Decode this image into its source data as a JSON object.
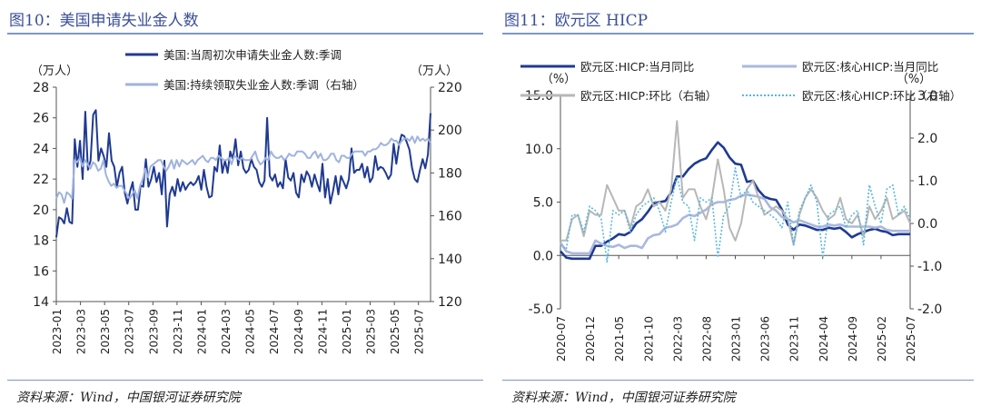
{
  "left": {
    "title": "图10：美国申请失业金人数",
    "source": "资料来源：Wind，中国银河证券研究院",
    "chart_data": {
      "type": "line",
      "left_unit": "（万人）",
      "right_unit": "（万人）",
      "y_left_lim": [
        14,
        28
      ],
      "y_left_ticks": [
        14,
        16,
        18,
        20,
        22,
        24,
        26,
        28
      ],
      "y_right_lim": [
        120,
        220
      ],
      "y_right_ticks": [
        120,
        140,
        160,
        180,
        200,
        220
      ],
      "x_start": "2023-01",
      "x_end": "2025-08",
      "x_ticks": [
        "2023-01",
        "2023-03",
        "2023-05",
        "2023-07",
        "2023-09",
        "2023-11",
        "2024-01",
        "2024-03",
        "2024-05",
        "2024-07",
        "2024-09",
        "2024-11",
        "2025-01",
        "2025-03",
        "2025-05",
        "2025-07"
      ],
      "legend_position": "top",
      "grid": false,
      "series": [
        {
          "name": "美国:当周初次申请失业金人数:季调",
          "axis": "left",
          "color": "#1f3a93",
          "values": [
            18.2,
            19.5,
            19.4,
            19.1,
            20.1,
            19.2,
            19.1,
            24.6,
            22.8,
            24.5,
            22.0,
            26.4,
            22.6,
            23.2,
            26.2,
            26.5,
            23.2,
            24.0,
            23.5,
            22.8,
            25.0,
            23.2,
            22.8,
            21.5,
            22.4,
            22.8,
            21.1,
            20.4,
            21.2,
            21.8,
            20.0,
            20.0,
            21.6,
            21.5,
            23.3,
            21.5,
            22.0,
            22.8,
            21.8,
            22.4,
            21.0,
            23.2,
            18.9,
            21.0,
            21.5,
            20.9,
            22.0,
            21.2,
            21.8,
            21.3,
            21.6,
            21.8,
            21.6,
            21.8,
            22.2,
            21.3,
            22.6,
            21.5,
            20.8,
            20.9,
            22.8,
            22.5,
            24.2,
            22.4,
            23.2,
            22.4,
            23.8,
            23.3,
            24.6,
            22.9,
            23.8,
            22.7,
            22.4,
            22.6,
            23.3,
            22.8,
            22.6,
            21.8,
            21.5,
            21.9,
            26.0,
            22.2,
            21.9,
            22.3,
            21.5,
            21.8,
            21.4,
            23.3,
            22.1,
            21.9,
            22.4,
            21.1,
            20.8,
            22.3,
            21.8,
            22.5,
            22.2,
            21.5,
            22.3,
            21.7,
            21.2,
            23.0,
            20.8,
            22.0,
            20.4,
            21.2,
            22.2,
            21.0,
            22.2,
            21.8,
            21.4,
            22.0,
            24.0,
            22.4,
            22.6,
            22.6,
            23.0,
            22.1,
            22.8,
            21.8,
            22.1,
            23.5,
            22.6,
            22.8,
            22.7,
            22.4,
            22.0,
            22.3,
            24.3,
            23.0,
            24.2,
            24.9,
            24.8,
            24.4,
            23.9,
            22.7,
            22.0,
            21.8,
            22.6,
            23.3,
            22.7,
            23.6,
            26.3
          ]
        },
        {
          "name": "美国:持续领取失业金人数:季调（右轴）",
          "axis": "right",
          "color": "#9fb3df",
          "values": [
            168,
            171,
            170,
            166,
            171,
            170,
            168,
            186,
            185,
            187,
            183,
            186,
            184,
            182,
            185,
            184,
            181,
            182,
            186,
            179,
            176,
            174,
            175,
            173,
            174,
            174,
            172,
            170,
            168,
            170,
            172,
            168,
            174,
            177,
            182,
            178,
            183,
            184,
            185,
            186,
            186,
            183,
            181,
            183,
            186,
            182,
            186,
            183,
            186,
            185,
            184,
            185,
            186,
            184,
            186,
            187,
            188,
            186,
            185,
            187,
            187,
            186,
            188,
            187,
            186,
            186,
            187,
            184,
            188,
            187,
            186,
            187,
            186,
            186,
            186,
            188,
            190,
            186,
            184,
            185,
            187,
            186,
            190,
            188,
            187,
            187,
            188,
            186,
            187,
            189,
            188,
            188,
            190,
            190,
            190,
            189,
            187,
            187,
            189,
            190,
            187,
            189,
            186,
            186,
            187,
            189,
            189,
            186,
            185,
            188,
            188,
            187,
            187,
            189,
            190,
            190,
            190,
            190,
            188,
            190,
            190,
            191,
            191,
            192,
            194,
            193,
            193,
            194,
            196,
            195,
            195,
            193,
            195,
            196,
            196,
            195,
            197,
            194,
            197,
            195,
            196,
            195,
            196,
            194
          ]
        }
      ]
    }
  },
  "right": {
    "title": "图11：欧元区 HICP",
    "source": "资料来源：Wind，中国银河证券研究院",
    "chart_data": {
      "type": "line",
      "left_unit": "（%）",
      "right_unit": "（%）",
      "y_left_lim": [
        -5.0,
        15.0
      ],
      "y_left_ticks": [
        "-5.0",
        "0.0",
        "5.0",
        "10.0",
        "15.0"
      ],
      "y_right_lim": [
        -2.0,
        3.0
      ],
      "y_right_ticks": [
        "-2.0",
        "-1.0",
        "0.0",
        "1.0",
        "2.0",
        "3.0"
      ],
      "x_start": "2020-07",
      "x_end": "2025-07",
      "x_ticks": [
        "2020-07",
        "2020-12",
        "2021-05",
        "2021-10",
        "2022-03",
        "2022-08",
        "2023-01",
        "2023-06",
        "2023-11",
        "2024-04",
        "2024-09",
        "2025-02",
        "2025-07"
      ],
      "legend_position": "top",
      "grid": false,
      "series": [
        {
          "name": "欧元区:HICP:当月同比",
          "axis": "left",
          "color": "#1f3a93",
          "style": "solid-thick",
          "values": [
            0.4,
            -0.2,
            -0.3,
            -0.3,
            -0.3,
            -0.3,
            0.9,
            0.9,
            1.3,
            1.6,
            2.0,
            1.9,
            2.2,
            3.0,
            3.4,
            4.1,
            4.9,
            5.0,
            5.1,
            5.9,
            7.4,
            7.4,
            8.1,
            8.6,
            8.9,
            9.1,
            9.9,
            10.6,
            10.1,
            9.2,
            8.6,
            8.5,
            6.9,
            7.0,
            6.1,
            5.5,
            5.3,
            5.2,
            4.3,
            2.9,
            2.4,
            2.9,
            2.8,
            2.6,
            2.4,
            2.4,
            2.6,
            2.5,
            2.6,
            2.2,
            1.7,
            2.0,
            2.2,
            2.4,
            2.5,
            2.3,
            2.2,
            1.9,
            2.0,
            2.0,
            2.0
          ]
        },
        {
          "name": "欧元区:核心HICP:当月同比",
          "axis": "left",
          "color": "#a9b8de",
          "style": "solid-thick",
          "values": [
            1.2,
            0.4,
            0.2,
            0.2,
            0.2,
            0.2,
            1.4,
            1.1,
            0.9,
            0.8,
            1.0,
            0.7,
            0.9,
            0.9,
            0.7,
            1.6,
            1.9,
            2.0,
            2.6,
            2.7,
            2.9,
            3.5,
            3.8,
            3.7,
            4.0,
            4.3,
            4.8,
            5.0,
            5.0,
            5.2,
            5.3,
            5.6,
            5.7,
            5.6,
            5.5,
            5.3,
            4.5,
            4.2,
            3.6,
            3.4,
            3.1,
            3.3,
            3.1,
            2.9,
            2.7,
            2.7,
            2.9,
            2.8,
            2.9,
            2.7,
            2.7,
            2.7,
            2.7,
            2.7,
            2.6,
            2.7,
            2.4,
            2.3,
            2.3,
            2.3,
            2.3
          ]
        },
        {
          "name": "欧元区:HICP:环比（右轴）",
          "axis": "right",
          "color": "#b7b7b7",
          "style": "solid",
          "values": [
            -0.4,
            -0.4,
            0.1,
            0.2,
            -0.3,
            0.3,
            0.2,
            0.2,
            0.9,
            0.6,
            0.3,
            0.3,
            -0.1,
            0.4,
            0.5,
            0.8,
            0.4,
            0.5,
            0.3,
            0.8,
            2.4,
            0.6,
            0.8,
            0.8,
            0.4,
            0.1,
            0.6,
            1.5,
            0.8,
            -0.1,
            -0.4,
            0.0,
            0.8,
            1.0,
            0.6,
            0.2,
            0.3,
            0.4,
            0.3,
            0.1,
            -0.5,
            0.2,
            0.6,
            0.8,
            0.6,
            0.3,
            0.1,
            0.2,
            0.6,
            0.1,
            0.0,
            0.2,
            -0.3,
            0.4,
            0.1,
            0.3,
            0.6,
            0.1,
            0.2,
            0.3,
            0.0
          ]
        },
        {
          "name": "欧元区:核心HICP:环比（右轴）",
          "axis": "right",
          "color": "#59b6e0",
          "style": "dotted",
          "values": [
            -0.5,
            -0.6,
            0.2,
            0.2,
            -0.2,
            0.4,
            0.3,
            0.1,
            -0.9,
            0.3,
            0.2,
            0.3,
            -0.2,
            0.2,
            0.4,
            0.5,
            0.6,
            0.3,
            -0.2,
            0.5,
            1.1,
            0.5,
            0.4,
            -0.4,
            0.6,
            0.5,
            0.6,
            -0.8,
            0.2,
            0.4,
            1.3,
            0.6,
            0.8,
            0.5,
            0.4,
            0.3,
            0.2,
            0.1,
            -0.1,
            0.5,
            -0.5,
            0.3,
            0.6,
            0.9,
            0.5,
            -0.8,
            0.2,
            0.3,
            0.4,
            -0.1,
            0.2,
            0.3,
            -0.5,
            0.9,
            0.4,
            0.0,
            0.8,
            0.9,
            0.2,
            0.4,
            0.1
          ]
        }
      ]
    }
  }
}
